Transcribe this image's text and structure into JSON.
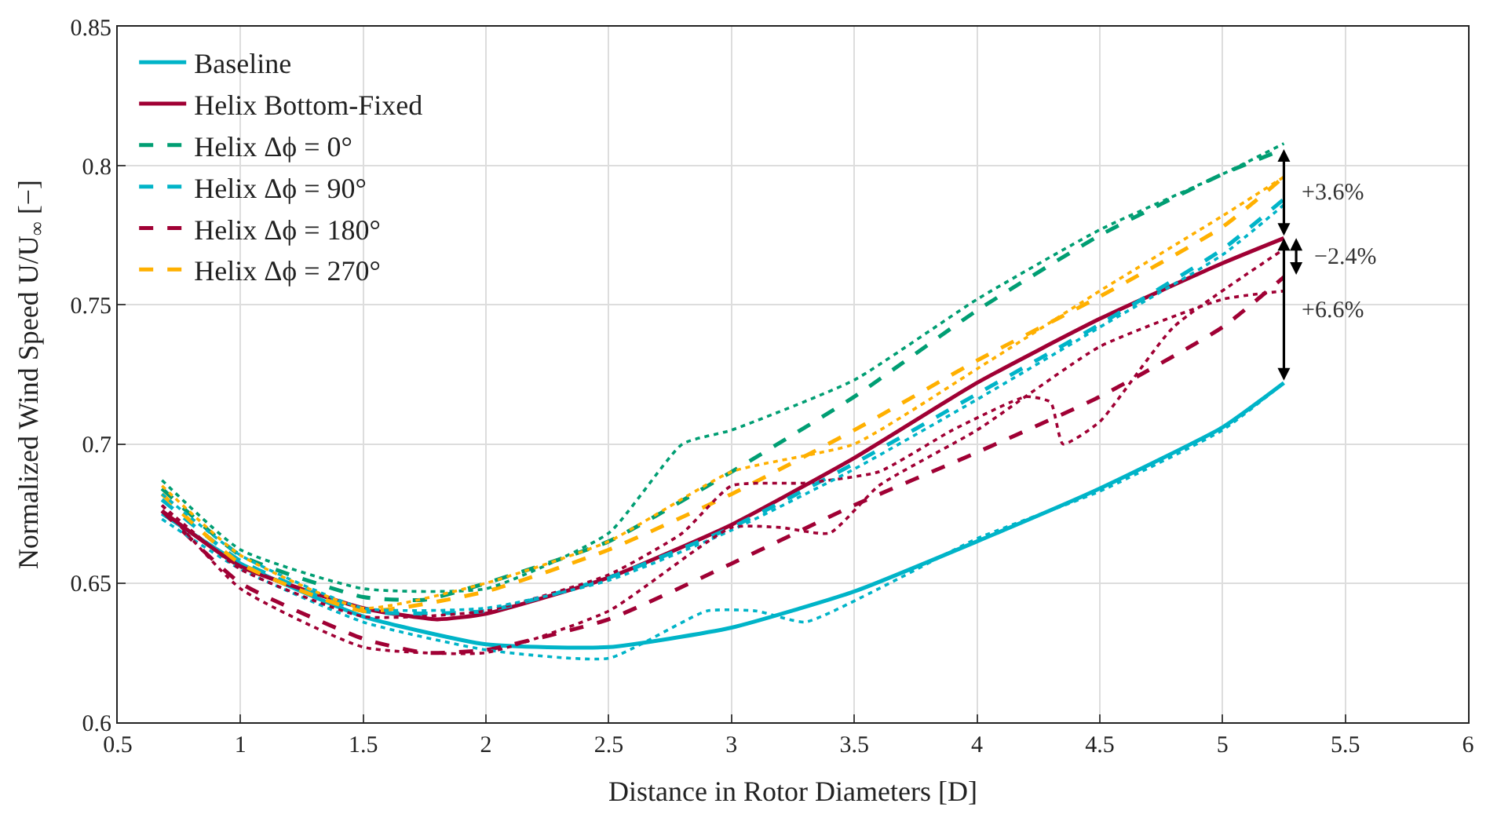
{
  "chart_data": {
    "type": "line",
    "xlabel": "Distance in Rotor Diameters [D]",
    "ylabel": "Normalized Wind Speed U/U$_{∞}$ [−]",
    "xlim": [
      0.5,
      6
    ],
    "xticks": [
      0.5,
      1,
      1.5,
      2,
      2.5,
      3,
      3.5,
      4,
      4.5,
      5,
      5.5,
      6
    ],
    "ylim": [
      0.6,
      0.85
    ],
    "yticks": [
      0.6,
      0.65,
      0.7,
      0.75,
      0.8,
      0.85
    ],
    "grid": true,
    "legend": "top left",
    "marker": "none",
    "series": [
      {
        "name": "Baseline",
        "color": "#00b4c8",
        "line_style": "solid",
        "x": [
          0.68,
          1,
          1.5,
          2,
          2.5,
          3,
          3.5,
          4,
          4.5,
          5,
          5.25
        ],
        "values": [
          0.675,
          0.657,
          0.638,
          0.628,
          0.627,
          0.634,
          0.647,
          0.665,
          0.684,
          0.706,
          0.722
        ]
      },
      {
        "name": "Helix Bottom-Fixed",
        "color": "#a00034",
        "line_style": "solid",
        "x": [
          0.68,
          1,
          1.5,
          1.8,
          2,
          2.5,
          3,
          3.5,
          4,
          4.5,
          5,
          5.25
        ],
        "values": [
          0.676,
          0.656,
          0.641,
          0.637,
          0.639,
          0.652,
          0.671,
          0.695,
          0.722,
          0.745,
          0.765,
          0.774
        ]
      },
      {
        "name": "Helix Δϕ = 0°",
        "color": "#009e73",
        "line_style": "dashed",
        "x": [
          0.68,
          1,
          1.5,
          1.75,
          2,
          2.5,
          3,
          3.5,
          4,
          4.5,
          5,
          5.25
        ],
        "values": [
          0.684,
          0.66,
          0.645,
          0.644,
          0.65,
          0.665,
          0.69,
          0.717,
          0.748,
          0.775,
          0.797,
          0.806
        ]
      },
      {
        "name": "Helix Δϕ = 90°",
        "color": "#00b4c8",
        "line_style": "dashed",
        "x": [
          0.68,
          1,
          1.5,
          2,
          2.5,
          3,
          3.5,
          4,
          4.5,
          5,
          5.25
        ],
        "values": [
          0.68,
          0.658,
          0.64,
          0.64,
          0.652,
          0.67,
          0.693,
          0.718,
          0.743,
          0.77,
          0.788
        ]
      },
      {
        "name": "Helix Δϕ = 180°",
        "color": "#a00034",
        "line_style": "dashed",
        "x": [
          0.68,
          1,
          1.5,
          1.75,
          2,
          2.5,
          3,
          3.5,
          4,
          4.5,
          5,
          5.25
        ],
        "values": [
          0.676,
          0.65,
          0.63,
          0.625,
          0.626,
          0.637,
          0.657,
          0.678,
          0.697,
          0.717,
          0.742,
          0.76
        ]
      },
      {
        "name": "Helix Δϕ = 270°",
        "color": "#ffb000",
        "line_style": "dashed",
        "x": [
          0.68,
          1,
          1.5,
          2,
          2.5,
          3,
          3.5,
          4,
          4.5,
          5,
          5.25
        ],
        "values": [
          0.682,
          0.657,
          0.64,
          0.647,
          0.662,
          0.682,
          0.705,
          0.73,
          0.753,
          0.778,
          0.796
        ]
      },
      {
        "color": "#00b4c8",
        "line_style": "dotted",
        "x": [
          0.68,
          1,
          1.5,
          2,
          2.5,
          2.9,
          3.1,
          3.3,
          3.6,
          4,
          4.5,
          5,
          5.25
        ],
        "values": [
          0.673,
          0.655,
          0.636,
          0.626,
          0.623,
          0.64,
          0.64,
          0.636,
          0.648,
          0.666,
          0.683,
          0.705,
          0.722
        ]
      },
      {
        "color": "#a00034",
        "line_style": "dotted",
        "x": [
          0.68,
          1,
          1.5,
          2,
          2.5,
          2.8,
          3,
          3.3,
          3.6,
          3.9,
          4.2,
          4.3,
          4.35,
          4.5,
          4.8,
          5.25
        ],
        "values": [
          0.678,
          0.655,
          0.638,
          0.64,
          0.653,
          0.668,
          0.685,
          0.686,
          0.69,
          0.705,
          0.717,
          0.715,
          0.7,
          0.708,
          0.742,
          0.77
        ]
      },
      {
        "color": "#009e73",
        "line_style": "dotted",
        "x": [
          0.68,
          1,
          1.5,
          2,
          2.5,
          2.8,
          3,
          3.5,
          4,
          4.5,
          5,
          5.25
        ],
        "values": [
          0.687,
          0.662,
          0.648,
          0.648,
          0.668,
          0.7,
          0.705,
          0.723,
          0.752,
          0.777,
          0.797,
          0.808
        ]
      },
      {
        "color": "#00b4c8",
        "line_style": "dotted",
        "x": [
          0.68,
          1,
          1.5,
          2,
          2.5,
          3,
          3.5,
          4,
          4.5,
          5,
          5.25
        ],
        "values": [
          0.682,
          0.66,
          0.641,
          0.641,
          0.651,
          0.669,
          0.691,
          0.716,
          0.742,
          0.768,
          0.786
        ]
      },
      {
        "color": "#a00034",
        "line_style": "dotted",
        "x": [
          0.68,
          1,
          1.5,
          2,
          2.5,
          3,
          3.2,
          3.4,
          3.6,
          4,
          4.5,
          5,
          5.25
        ],
        "values": [
          0.678,
          0.648,
          0.627,
          0.625,
          0.64,
          0.67,
          0.67,
          0.668,
          0.685,
          0.705,
          0.735,
          0.752,
          0.755
        ]
      },
      {
        "color": "#ffb000",
        "line_style": "dotted",
        "x": [
          0.68,
          1,
          1.5,
          2,
          2.5,
          3,
          3.5,
          4,
          4.5,
          5,
          5.25
        ],
        "values": [
          0.685,
          0.66,
          0.641,
          0.65,
          0.665,
          0.69,
          0.7,
          0.727,
          0.755,
          0.782,
          0.796
        ]
      }
    ],
    "annotations": [
      "+3.6%",
      "−2.4%",
      "+6.6%"
    ]
  }
}
